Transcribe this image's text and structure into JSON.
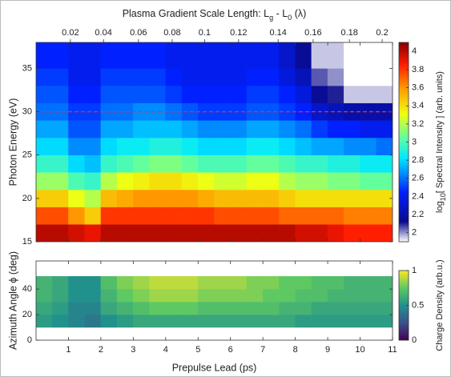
{
  "chart_data": [
    {
      "type": "heatmap",
      "ylabel": "Photon Energy (eV)",
      "top_axis": {
        "label_parts": [
          "Plasma Gradient Scale Length: L",
          "g",
          " - L",
          "0",
          " (λ)"
        ],
        "ticks": [
          0.02,
          0.04,
          0.06,
          0.08,
          0.1,
          0.12,
          0.14,
          0.16,
          0.18,
          0.2
        ],
        "at": [
          1.06,
          2.08,
          3.16,
          4.2,
          5.2,
          6.25,
          7.47,
          8.55,
          9.67,
          10.68
        ]
      },
      "x_edges": [
        0,
        0.5,
        1,
        1.5,
        2,
        2.5,
        3,
        3.5,
        4,
        4.5,
        5,
        5.5,
        6,
        6.5,
        7,
        7.5,
        8,
        8.5,
        9,
        9.5,
        10,
        10.5,
        11
      ],
      "y_edges": [
        15,
        17,
        19,
        21,
        23,
        25,
        27,
        29,
        31,
        33,
        35,
        37,
        39
      ],
      "z": [
        [
          4.0,
          4.0,
          3.95,
          3.9,
          4.0,
          4.0,
          4.0,
          4.0,
          4.0,
          4.0,
          4.0,
          4.0,
          4.0,
          4.0,
          4.0,
          4.0,
          3.95,
          3.95,
          3.9,
          3.85,
          3.85,
          3.85
        ],
        [
          3.75,
          3.75,
          3.6,
          3.45,
          3.8,
          3.8,
          3.8,
          3.8,
          3.8,
          3.8,
          3.8,
          3.75,
          3.75,
          3.75,
          3.75,
          3.7,
          3.7,
          3.7,
          3.7,
          3.65,
          3.65,
          3.65
        ],
        [
          3.45,
          3.45,
          3.3,
          3.2,
          3.5,
          3.55,
          3.6,
          3.6,
          3.6,
          3.6,
          3.55,
          3.5,
          3.5,
          3.5,
          3.5,
          3.45,
          3.4,
          3.4,
          3.4,
          3.4,
          3.4,
          3.4
        ],
        [
          3.15,
          3.15,
          3.0,
          2.95,
          3.2,
          3.3,
          3.35,
          3.4,
          3.4,
          3.35,
          3.3,
          3.25,
          3.25,
          3.3,
          3.3,
          3.2,
          3.15,
          3.15,
          3.1,
          3.1,
          3.05,
          3.05
        ],
        [
          2.95,
          2.95,
          2.8,
          2.75,
          2.95,
          3.0,
          3.05,
          3.1,
          3.1,
          3.05,
          3.0,
          3.0,
          3.0,
          3.05,
          3.05,
          3.0,
          2.95,
          2.95,
          2.9,
          2.9,
          2.85,
          2.85
        ],
        [
          2.8,
          2.8,
          2.65,
          2.65,
          2.8,
          2.85,
          2.85,
          2.9,
          2.9,
          2.85,
          2.8,
          2.8,
          2.8,
          2.85,
          2.85,
          2.8,
          2.75,
          2.7,
          2.7,
          2.65,
          2.65,
          2.6
        ],
        [
          2.7,
          2.7,
          2.55,
          2.55,
          2.7,
          2.7,
          2.75,
          2.75,
          2.75,
          2.7,
          2.65,
          2.65,
          2.65,
          2.7,
          2.7,
          2.65,
          2.6,
          2.5,
          2.45,
          2.45,
          2.4,
          2.4
        ],
        [
          2.6,
          2.6,
          2.5,
          2.5,
          2.6,
          2.6,
          2.65,
          2.65,
          2.6,
          2.55,
          2.5,
          2.5,
          2.5,
          2.55,
          2.55,
          2.5,
          2.45,
          2.3,
          2.25,
          2.2,
          2.2,
          2.2
        ],
        [
          2.55,
          2.55,
          2.45,
          2.45,
          2.55,
          2.55,
          2.55,
          2.55,
          2.5,
          2.45,
          2.45,
          2.45,
          2.45,
          2.5,
          2.5,
          2.45,
          2.35,
          2.15,
          2.1,
          1.95,
          1.95,
          1.95
        ],
        [
          2.5,
          2.5,
          2.4,
          2.4,
          2.5,
          2.5,
          2.5,
          2.5,
          2.45,
          2.4,
          2.4,
          2.4,
          2.4,
          2.45,
          2.45,
          2.35,
          2.25,
          2.05,
          2.0,
          1.9,
          1.9,
          1.9
        ],
        [
          2.45,
          2.45,
          2.4,
          2.4,
          2.45,
          2.45,
          2.45,
          2.45,
          2.4,
          2.4,
          2.4,
          2.4,
          2.4,
          2.4,
          2.4,
          2.3,
          2.15,
          1.95,
          1.95,
          1.9,
          1.9,
          1.9
        ],
        [
          2.45,
          2.45,
          2.4,
          2.4,
          2.45,
          2.45,
          2.45,
          2.45,
          2.4,
          2.4,
          2.4,
          2.4,
          2.4,
          2.4,
          2.4,
          2.3,
          2.15,
          1.95,
          1.95,
          1.9,
          1.9,
          1.9
        ]
      ],
      "xlim": [
        0,
        11
      ],
      "ylim": [
        15,
        38
      ],
      "xticks": [
        1,
        2,
        3,
        4,
        5,
        6,
        7,
        8,
        9,
        10,
        11
      ],
      "yticks": [
        15,
        20,
        25,
        30,
        35
      ],
      "colorbar": {
        "label_parts": [
          "log",
          "10",
          "[ Spectral Intensity ] (arb. units)"
        ],
        "lim": [
          1.9,
          4.1
        ],
        "ticks": [
          2,
          2.2,
          2.4,
          2.6,
          2.8,
          3,
          3.2,
          3.4,
          3.6,
          3.8,
          4
        ]
      },
      "hline": {
        "y": 30,
        "color": "#e8302a"
      }
    },
    {
      "type": "heatmap",
      "xlabel": "Prepulse Lead (ps)",
      "ylabel": "Azimuth Angle ϕ (deg)",
      "x_edges": [
        0,
        0.5,
        1,
        1.5,
        2,
        2.5,
        3,
        3.5,
        4,
        4.5,
        5,
        5.5,
        6,
        6.5,
        7,
        7.5,
        8,
        8.5,
        9,
        9.5,
        10,
        10.5,
        11
      ],
      "y_edges": [
        10,
        20,
        30,
        40,
        50
      ],
      "z": [
        [
          0.55,
          0.5,
          0.45,
          0.4,
          0.5,
          0.55,
          0.6,
          0.6,
          0.6,
          0.6,
          0.6,
          0.6,
          0.6,
          0.6,
          0.6,
          0.6,
          0.55,
          0.55,
          0.55,
          0.55,
          0.55,
          0.55
        ],
        [
          0.6,
          0.55,
          0.45,
          0.45,
          0.6,
          0.65,
          0.7,
          0.75,
          0.75,
          0.75,
          0.7,
          0.7,
          0.7,
          0.7,
          0.7,
          0.65,
          0.65,
          0.6,
          0.6,
          0.6,
          0.6,
          0.6
        ],
        [
          0.65,
          0.6,
          0.5,
          0.5,
          0.65,
          0.75,
          0.8,
          0.85,
          0.85,
          0.85,
          0.8,
          0.8,
          0.8,
          0.8,
          0.75,
          0.75,
          0.7,
          0.7,
          0.65,
          0.65,
          0.65,
          0.65
        ],
        [
          0.65,
          0.6,
          0.5,
          0.5,
          0.7,
          0.8,
          0.85,
          0.9,
          0.9,
          0.9,
          0.85,
          0.85,
          0.85,
          0.8,
          0.8,
          0.75,
          0.75,
          0.7,
          0.7,
          0.65,
          0.65,
          0.65
        ]
      ],
      "xlim": [
        0,
        11
      ],
      "ylim": [
        0,
        62
      ],
      "xticks": [
        1,
        2,
        3,
        4,
        5,
        6,
        7,
        8,
        9,
        10,
        11
      ],
      "yticks": [
        0,
        20,
        40
      ],
      "colorbar": {
        "label": "Charge Density (arb.u.)",
        "lim": [
          0,
          1
        ],
        "ticks": [
          0,
          0.5,
          1
        ]
      }
    }
  ]
}
